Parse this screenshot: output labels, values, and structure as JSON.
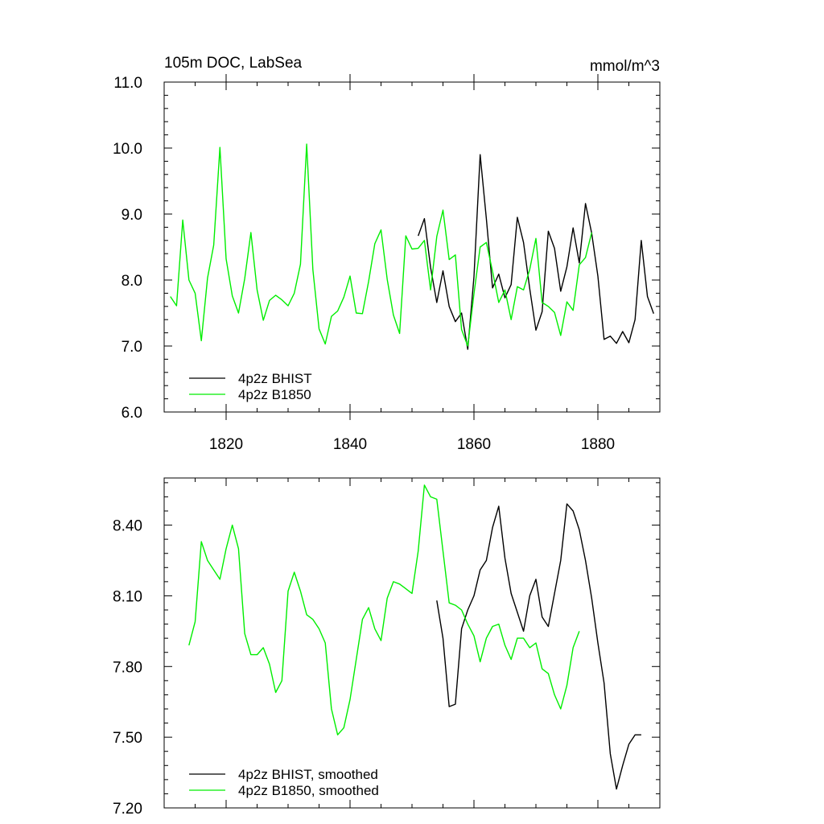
{
  "chart_data": [
    {
      "type": "line",
      "title": "105m DOC, LabSea",
      "units": "mmol/m^3",
      "xlim": [
        1810,
        1890
      ],
      "ylim": [
        6.0,
        11.0
      ],
      "xticks": [
        1820,
        1840,
        1860,
        1880
      ],
      "yticks": [
        6.0,
        7.0,
        8.0,
        9.0,
        10.0,
        11.0
      ],
      "series": [
        {
          "name": "4p2z BHIST",
          "color": "#000000",
          "x": [
            1851,
            1852,
            1853,
            1854,
            1855,
            1856,
            1857,
            1858,
            1859,
            1860,
            1861,
            1862,
            1863,
            1864,
            1865,
            1866,
            1867,
            1868,
            1869,
            1870,
            1871,
            1872,
            1873,
            1874,
            1875,
            1876,
            1877,
            1878,
            1879,
            1880,
            1881,
            1882,
            1883,
            1884,
            1885,
            1886,
            1887,
            1888,
            1889
          ],
          "y": [
            8.67,
            8.93,
            8.19,
            7.66,
            8.14,
            7.6,
            7.37,
            7.5,
            6.95,
            8.05,
            9.9,
            8.93,
            7.88,
            8.09,
            7.73,
            7.93,
            8.95,
            8.57,
            7.87,
            7.24,
            7.52,
            8.74,
            8.48,
            7.83,
            8.2,
            8.79,
            8.26,
            9.16,
            8.71,
            8.06,
            7.1,
            7.15,
            7.04,
            7.22,
            7.05,
            7.4,
            8.6,
            7.75,
            7.49
          ]
        },
        {
          "name": "4p2z B1850",
          "color": "#00ee00",
          "x": [
            1811,
            1812,
            1813,
            1814,
            1815,
            1816,
            1817,
            1818,
            1819,
            1820,
            1821,
            1822,
            1823,
            1824,
            1825,
            1826,
            1827,
            1828,
            1829,
            1830,
            1831,
            1832,
            1833,
            1834,
            1835,
            1836,
            1837,
            1838,
            1839,
            1840,
            1841,
            1842,
            1843,
            1844,
            1845,
            1846,
            1847,
            1848,
            1849,
            1850,
            1851,
            1852,
            1853,
            1854,
            1855,
            1856,
            1857,
            1858,
            1859,
            1860,
            1861,
            1862,
            1863,
            1864,
            1865,
            1866,
            1867,
            1868,
            1869,
            1870,
            1871,
            1872,
            1873,
            1874,
            1875,
            1876,
            1877,
            1878,
            1879
          ],
          "y": [
            7.75,
            7.61,
            8.91,
            8.0,
            7.8,
            7.08,
            8.03,
            8.53,
            10.01,
            8.32,
            7.76,
            7.5,
            8.02,
            8.72,
            7.85,
            7.39,
            7.69,
            7.77,
            7.7,
            7.61,
            7.8,
            8.24,
            10.06,
            8.16,
            7.26,
            7.03,
            7.45,
            7.53,
            7.74,
            8.06,
            7.5,
            7.49,
            7.98,
            8.55,
            8.76,
            8.01,
            7.47,
            7.19,
            8.67,
            8.47,
            8.48,
            8.6,
            7.85,
            8.66,
            9.06,
            8.31,
            8.38,
            7.25,
            7.0,
            7.79,
            8.5,
            8.57,
            8.13,
            7.66,
            7.85,
            7.4,
            7.9,
            7.85,
            8.16,
            8.63,
            7.66,
            7.6,
            7.51,
            7.16,
            7.67,
            7.54,
            8.23,
            8.34,
            8.72
          ]
        }
      ],
      "legend": {
        "position": "bottom-left"
      },
      "grid": false
    },
    {
      "type": "line",
      "xlim": [
        1810,
        1890
      ],
      "ylim": [
        7.2,
        8.6
      ],
      "xticks": [
        1820,
        1840,
        1860,
        1880
      ],
      "yticks": [
        7.2,
        7.5,
        7.8,
        8.1,
        8.4
      ],
      "ytick_labels": [
        "7.20",
        "7.50",
        "7.80",
        "8.10",
        "8.40"
      ],
      "series": [
        {
          "name": "4p2z BHIST, smoothed",
          "color": "#000000",
          "x": [
            1854,
            1855,
            1856,
            1857,
            1858,
            1859,
            1860,
            1861,
            1862,
            1863,
            1864,
            1865,
            1866,
            1867,
            1868,
            1869,
            1870,
            1871,
            1872,
            1873,
            1874,
            1875,
            1876,
            1877,
            1878,
            1879,
            1880,
            1881,
            1882,
            1883,
            1884,
            1885,
            1886,
            1887
          ],
          "y": [
            8.08,
            7.92,
            7.63,
            7.64,
            7.96,
            8.04,
            8.1,
            8.21,
            8.25,
            8.39,
            8.48,
            8.26,
            8.11,
            8.03,
            7.95,
            8.1,
            8.17,
            8.01,
            7.97,
            8.11,
            8.25,
            8.49,
            8.46,
            8.38,
            8.25,
            8.09,
            7.9,
            7.73,
            7.43,
            7.28,
            7.38,
            7.47,
            7.51,
            7.51
          ]
        },
        {
          "name": "4p2z B1850, smoothed",
          "color": "#00ee00",
          "x": [
            1814,
            1815,
            1816,
            1817,
            1818,
            1819,
            1820,
            1821,
            1822,
            1823,
            1824,
            1825,
            1826,
            1827,
            1828,
            1829,
            1830,
            1831,
            1832,
            1833,
            1834,
            1835,
            1836,
            1837,
            1838,
            1839,
            1840,
            1841,
            1842,
            1843,
            1844,
            1845,
            1846,
            1847,
            1848,
            1849,
            1850,
            1851,
            1852,
            1853,
            1854,
            1855,
            1856,
            1857,
            1858,
            1859,
            1860,
            1861,
            1862,
            1863,
            1864,
            1865,
            1866,
            1867,
            1868,
            1869,
            1870,
            1871,
            1872,
            1873,
            1874,
            1875,
            1876,
            1877
          ],
          "y": [
            7.89,
            7.99,
            8.33,
            8.25,
            8.21,
            8.17,
            8.3,
            8.4,
            8.3,
            7.94,
            7.85,
            7.85,
            7.88,
            7.81,
            7.69,
            7.74,
            8.12,
            8.2,
            8.12,
            8.02,
            8.0,
            7.96,
            7.9,
            7.62,
            7.51,
            7.54,
            7.66,
            7.83,
            8.0,
            8.05,
            7.96,
            7.91,
            8.09,
            8.16,
            8.15,
            8.13,
            8.11,
            8.29,
            8.57,
            8.52,
            8.51,
            8.29,
            8.07,
            8.06,
            8.04,
            7.98,
            7.93,
            7.82,
            7.92,
            7.97,
            7.98,
            7.89,
            7.83,
            7.92,
            7.92,
            7.88,
            7.9,
            7.79,
            7.77,
            7.68,
            7.62,
            7.72,
            7.88,
            7.95
          ]
        }
      ],
      "legend": {
        "position": "bottom-left"
      },
      "grid": false
    }
  ]
}
